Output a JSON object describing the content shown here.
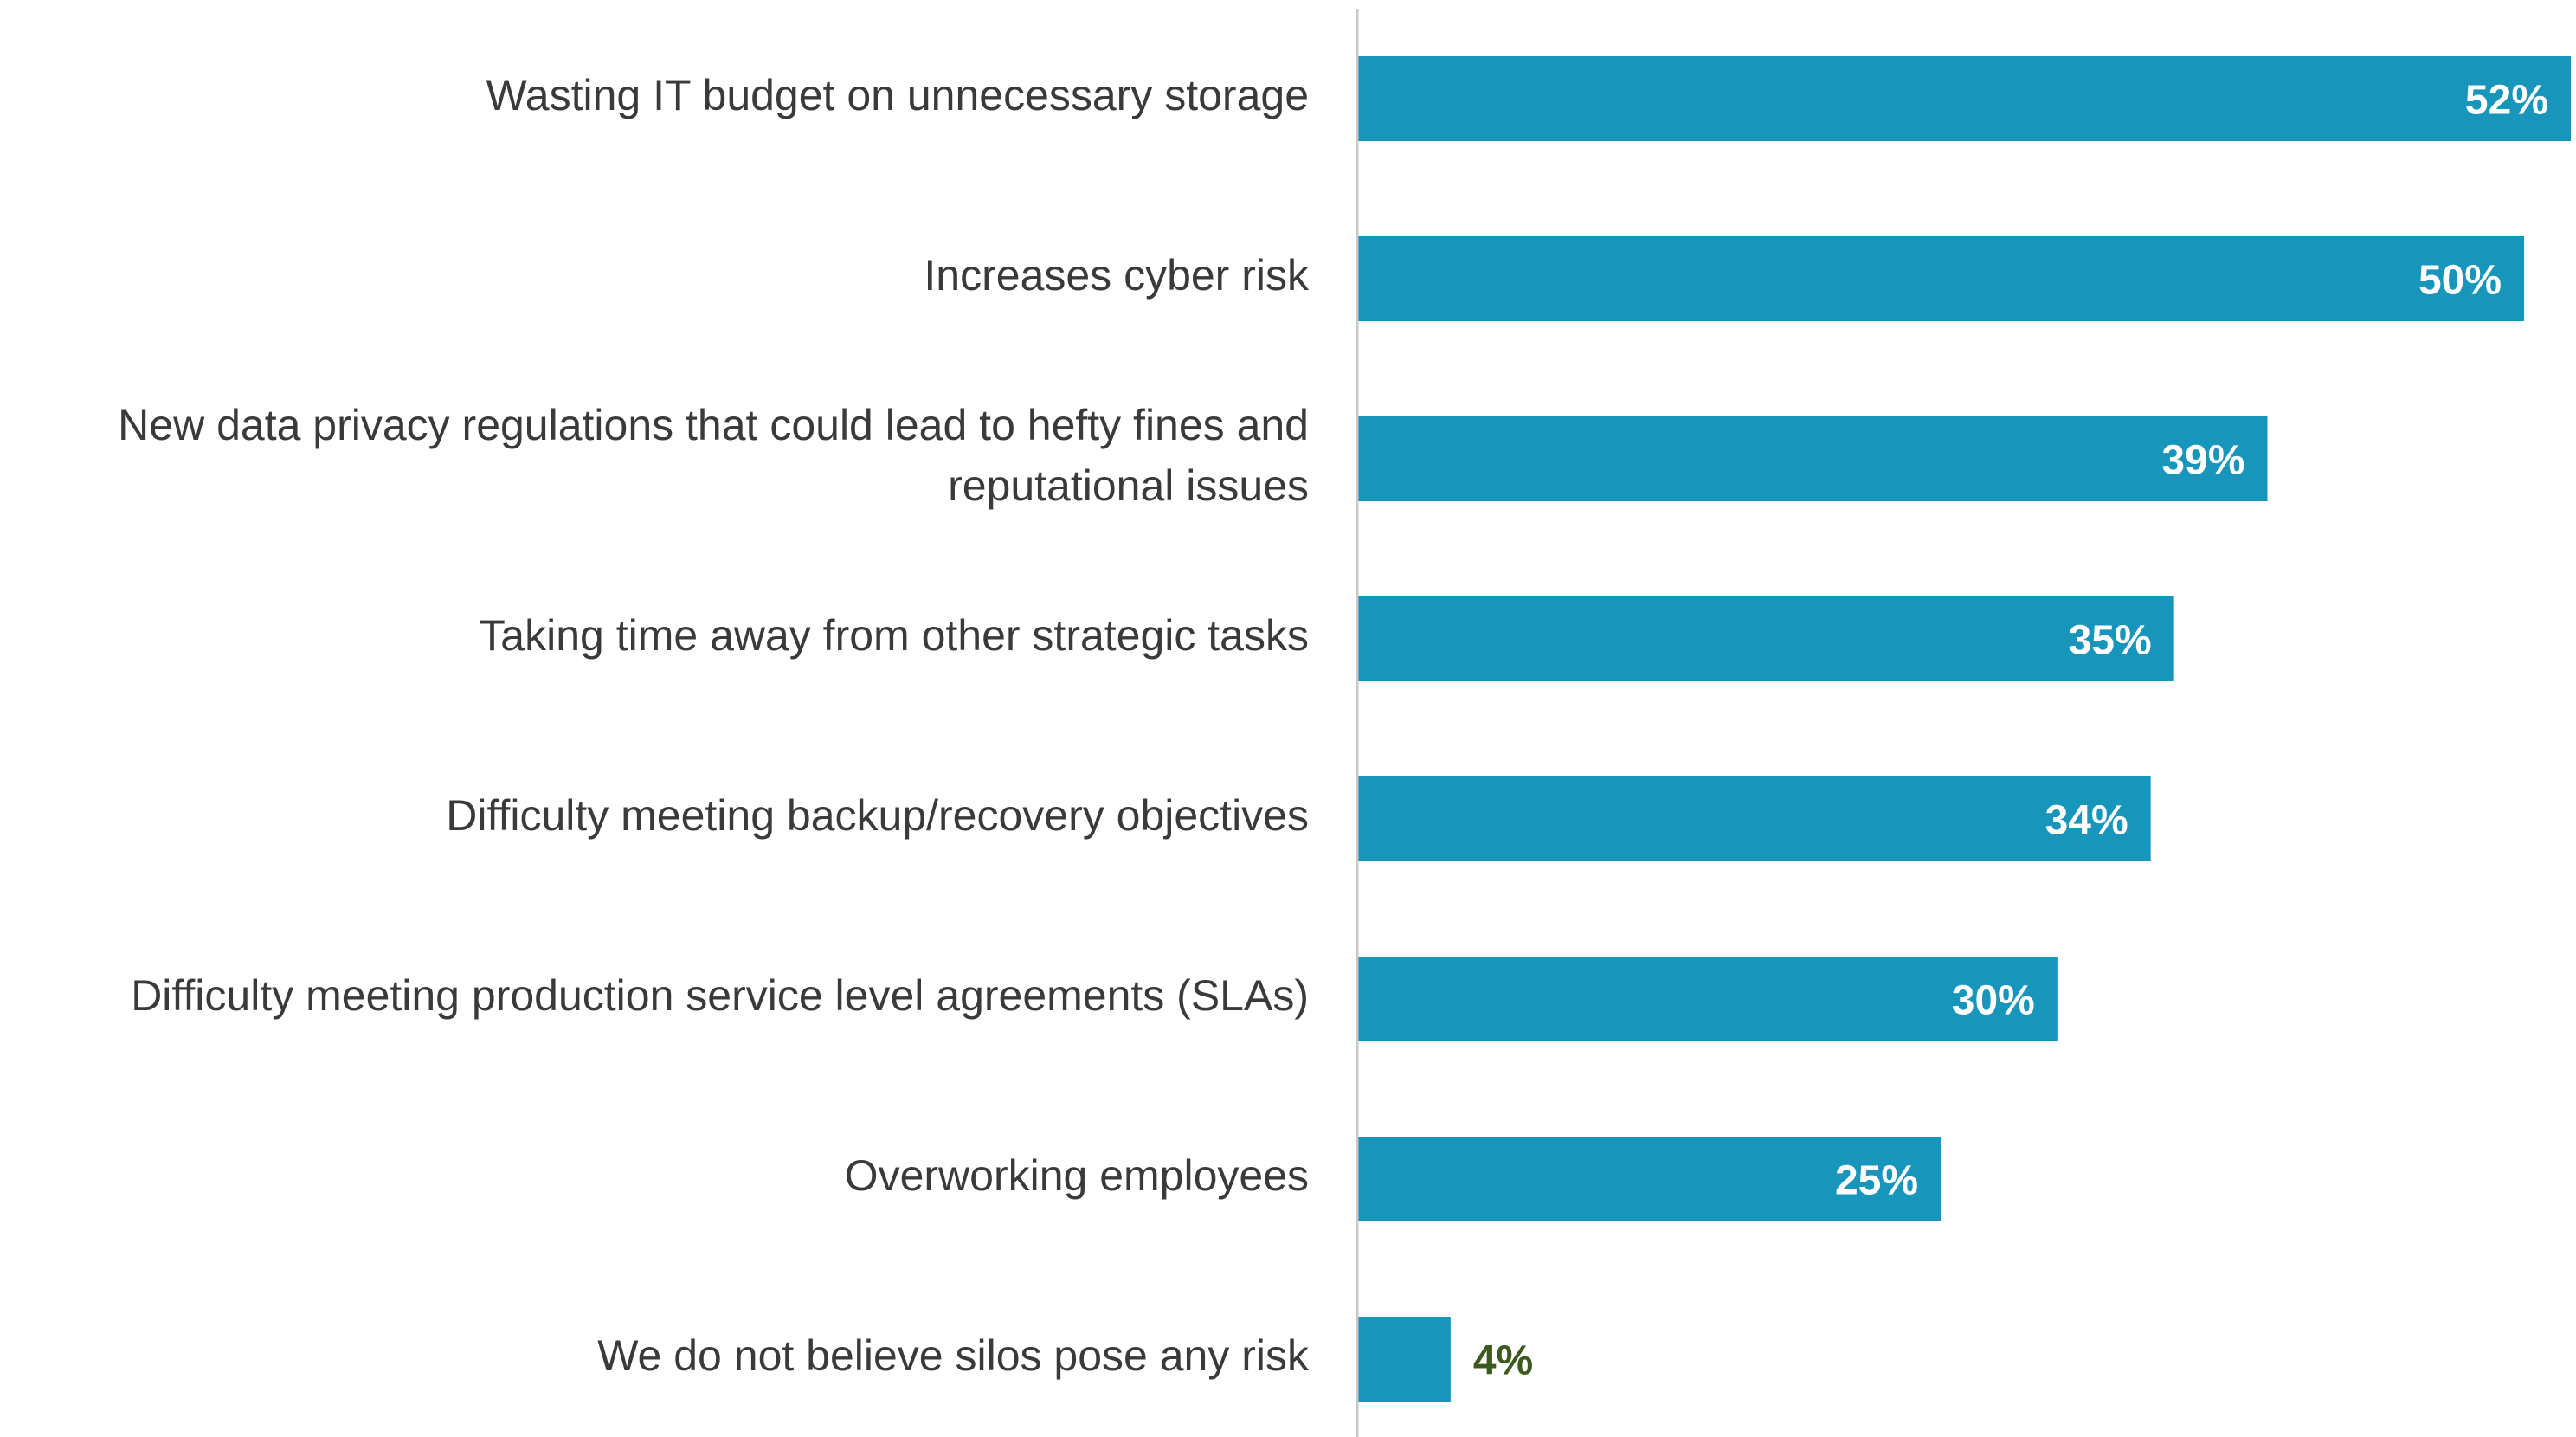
{
  "chart_data": {
    "type": "bar",
    "orientation": "horizontal",
    "title": "",
    "xlabel": "",
    "ylabel": "",
    "xlim": [
      0,
      52
    ],
    "grid": false,
    "legend": "none",
    "categories": [
      [
        "Wasting IT budget on unnecessary storage"
      ],
      [
        "Increases cyber risk"
      ],
      [
        "New data privacy regulations that could lead to hefty fines and",
        "reputational issues"
      ],
      [
        "Taking time away from other strategic tasks"
      ],
      [
        "Difficulty meeting backup/recovery objectives"
      ],
      [
        "Difficulty meeting production service level agreements (SLAs)"
      ],
      [
        "Overworking employees"
      ],
      [
        "We do not believe silos pose any risk"
      ]
    ],
    "values": [
      52,
      50,
      39,
      35,
      34,
      30,
      25,
      4
    ],
    "value_labels": [
      "52%",
      "50%",
      "39%",
      "35%",
      "34%",
      "30%",
      "25%",
      "4%"
    ],
    "colors": {
      "bar": "#1795bb",
      "label_inside": "#ffffff",
      "label_outside": "#3d5a1e",
      "axis": "#c8c8c8",
      "category_text": "#3a3a3a"
    }
  }
}
